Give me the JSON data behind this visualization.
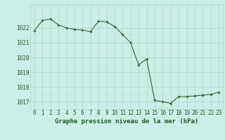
{
  "x": [
    0,
    1,
    2,
    3,
    4,
    5,
    6,
    7,
    8,
    9,
    10,
    11,
    12,
    13,
    14,
    15,
    16,
    17,
    18,
    19,
    20,
    21,
    22,
    23
  ],
  "y": [
    1021.8,
    1022.5,
    1022.6,
    1022.2,
    1022.0,
    1021.9,
    1021.85,
    1021.75,
    1022.45,
    1022.4,
    1022.1,
    1021.55,
    1021.0,
    1019.5,
    1019.9,
    1017.1,
    1017.0,
    1016.9,
    1017.35,
    1017.35,
    1017.4,
    1017.45,
    1017.5,
    1017.65
  ],
  "line_color": "#2d6a2d",
  "marker_color": "#2d6a2d",
  "bg_color": "#cceee8",
  "grid_color_major": "#aad4cc",
  "grid_color_minor": "#c0e0d8",
  "text_color": "#1a5a1a",
  "xlabel": "Graphe pression niveau de la mer (hPa)",
  "ylim_min": 1016.5,
  "ylim_max": 1023.6,
  "yticks": [
    1017,
    1018,
    1019,
    1020,
    1021,
    1022
  ],
  "xticks": [
    0,
    1,
    2,
    3,
    4,
    5,
    6,
    7,
    8,
    9,
    10,
    11,
    12,
    13,
    14,
    15,
    16,
    17,
    18,
    19,
    20,
    21,
    22,
    23
  ],
  "xtick_labels": [
    "0",
    "1",
    "2",
    "3",
    "4",
    "5",
    "6",
    "7",
    "8",
    "9",
    "10",
    "11",
    "12",
    "13",
    "14",
    "15",
    "16",
    "17",
    "18",
    "19",
    "20",
    "21",
    "22",
    "23"
  ],
  "tick_fontsize": 5.5,
  "label_fontsize": 6.5
}
